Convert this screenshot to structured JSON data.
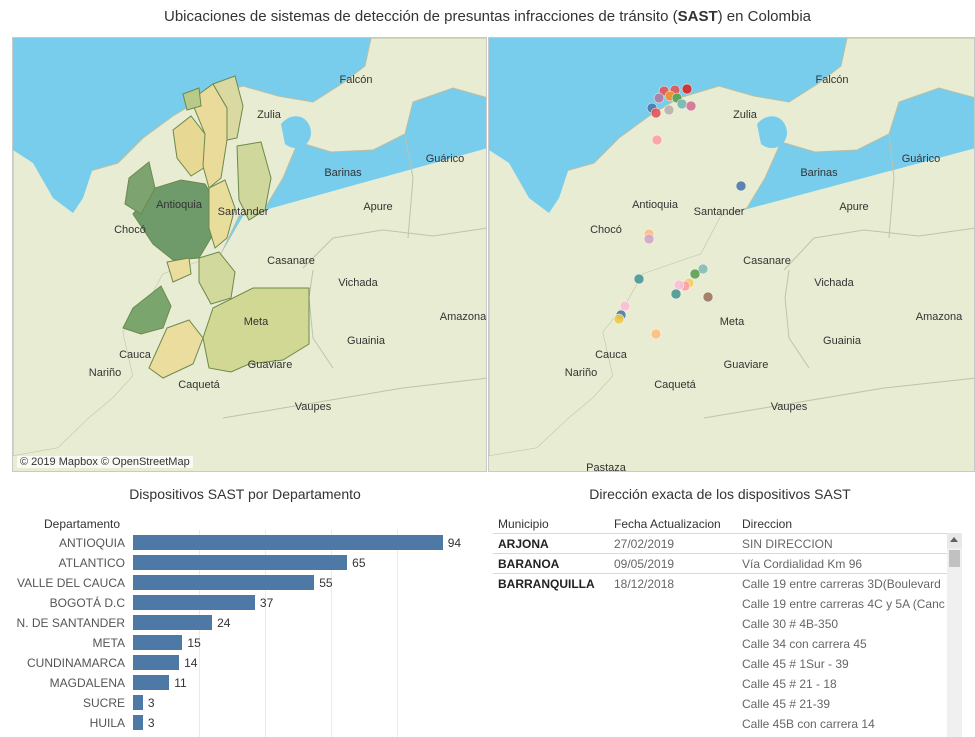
{
  "title": {
    "prefix": "Ubicaciones de sistemas de detección de presuntas infracciones de tránsito (",
    "highlight": "SAST",
    "suffix": ") en Colombia"
  },
  "colors": {
    "ocean": "#78ccec",
    "land": "#e8ecd2",
    "bar": "#4e79a7"
  },
  "maps": {
    "left": {
      "labels": [
        "Falcón",
        "Zulia",
        "Guárico",
        "Barinas",
        "Antioquia",
        "Santander",
        "Apure",
        "Chocó",
        "Casanare",
        "Vichada",
        "Meta",
        "Amazona",
        "Guainia",
        "Cauca",
        "Guaviare",
        "Nariño",
        "Caquetá",
        "Vaupes"
      ],
      "attribution": "© 2019 Mapbox © OpenStreetMap"
    },
    "right": {
      "labels": [
        "Falcón",
        "Zulia",
        "Guárico",
        "Barinas",
        "Antioquia",
        "Santander",
        "Apure",
        "Chocó",
        "Casanare",
        "Vichada",
        "Meta",
        "Amazona",
        "Guainia",
        "Cauca",
        "Guaviare",
        "Nariño",
        "Caquetá",
        "Vaupes",
        "Pastaza"
      ]
    }
  },
  "bar_section": {
    "title": "Dispositivos SAST por Departamento",
    "column_header": "Departamento"
  },
  "chart_data": {
    "type": "bar",
    "orientation": "horizontal",
    "categories": [
      "ANTIOQUIA",
      "ATLANTICO",
      "VALLE DEL CAUCA",
      "BOGOTÁ D.C",
      "N. DE SANTANDER",
      "META",
      "CUNDINAMARCA",
      "MAGDALENA",
      "SUCRE",
      "HUILA"
    ],
    "values": [
      94,
      65,
      55,
      37,
      24,
      15,
      14,
      11,
      3,
      3
    ],
    "title": "Dispositivos SAST por Departamento",
    "xlabel": "",
    "ylabel": "Departamento",
    "xlim": [
      0,
      100
    ],
    "grid": true
  },
  "table": {
    "title": "Dirección exacta de los dispositivos SAST",
    "headers": [
      "Municipio",
      "Fecha Actualizacion",
      "Direccion"
    ],
    "rows": [
      {
        "municipio": "ARJONA",
        "fecha": "27/02/2019",
        "direcciones": [
          "SIN DIRECCION"
        ]
      },
      {
        "municipio": "BARANOA",
        "fecha": "09/05/2019",
        "direcciones": [
          "Vía Cordialidad Km 96"
        ]
      },
      {
        "municipio": "BARRANQUILLA",
        "fecha": "18/12/2018",
        "direcciones": [
          "Calle 19 entre carreras 3D(Boulevard",
          "Calle 19 entre carreras 4C y 5A (Canc",
          "Calle 30 # 4B-350",
          "Calle 34 con carrera 45",
          "Calle 45 # 1Sur - 39",
          "Calle 45 # 21 - 18",
          "Calle 45 # 21-39",
          "Calle 45B con carrera 14"
        ]
      }
    ]
  }
}
